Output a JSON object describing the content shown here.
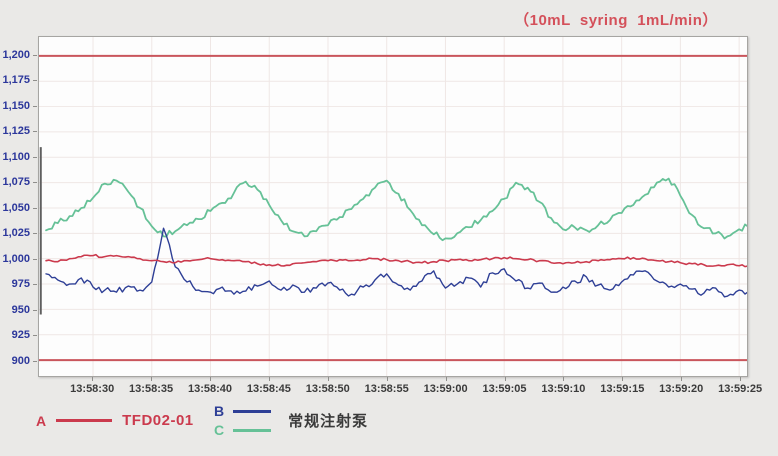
{
  "title": {
    "text": "（10mL  syring  1mL/min）",
    "color": "#d4505a"
  },
  "axes_style": {
    "y_label_color": "#2c379b",
    "x_label_color": "#3b3b3b",
    "tick_color": "#8f8e8b"
  },
  "legend": {
    "item_a": {
      "key": "A",
      "label": "TFD02-01"
    },
    "item_b": {
      "key": "B"
    },
    "item_c": {
      "key": "C"
    },
    "group_label": "常规注射泵"
  },
  "chart_data": {
    "type": "line",
    "title": "（10mL  syring  1mL/min）",
    "xlabel": "",
    "ylabel": "",
    "grid": true,
    "legend_position": "bottom",
    "x_base_time": "13:58:00",
    "x_tick_labels": [
      "13:58:30",
      "13:58:35",
      "13:58:40",
      "13:58:45",
      "13:58:50",
      "13:58:55",
      "13:59:00",
      "13:59:05",
      "13:59:10",
      "13:59:15",
      "13:59:20",
      "13:59:25"
    ],
    "x_ticks_seconds": [
      30,
      35,
      40,
      45,
      50,
      55,
      60,
      65,
      70,
      75,
      80,
      85
    ],
    "y_tick_labels": [
      "1,200",
      "1,175",
      "1,150",
      "1,125",
      "1,100",
      "1,075",
      "1,050",
      "1,025",
      "1,000",
      "975",
      "950",
      "925",
      "900"
    ],
    "y_ticks": [
      1200,
      1175,
      1150,
      1125,
      1100,
      1075,
      1050,
      1025,
      1000,
      975,
      950,
      925,
      900
    ],
    "ylim": [
      884.3,
      1218.6
    ],
    "xlim_seconds": [
      25.4,
      85.67
    ],
    "limit_lines": {
      "upper": 1200,
      "lower": 900,
      "color": "#c9555c",
      "width": 2
    },
    "startup_artifact": {
      "x_second": 25.55,
      "value_top": 1110,
      "value_bottom": 945,
      "color": "#5f5f5f",
      "width": 2
    },
    "style": {
      "plot_background": "#fdfdfd",
      "grid_color": "#efe7e5",
      "noise_seed": 20240601
    },
    "x_start_second": 26,
    "x_step_seconds": 1,
    "series": [
      {
        "id": "A",
        "name": "TFD02-01",
        "color": "#cb3a4d",
        "stroke_width": 1.6,
        "noise": 1.2,
        "values": [
          998,
          997,
          1000,
          1002,
          1003,
          1002,
          1003,
          1002,
          1000,
          998,
          997,
          996,
          998,
          999,
          1000,
          999,
          998,
          997,
          995,
          994,
          993,
          995,
          996,
          997,
          998,
          999,
          998,
          999,
          1000,
          999,
          998,
          997,
          996,
          997,
          998,
          999,
          998,
          999,
          1000,
          1001,
          1000,
          999,
          998,
          996,
          995,
          996,
          997,
          998,
          999,
          1000,
          1001,
          1000,
          998,
          997,
          996,
          995,
          994,
          993,
          994,
          993,
          993
        ]
      },
      {
        "id": "B",
        "name": "常规注射泵",
        "color": "#2e3f96",
        "stroke_width": 1.4,
        "noise": 3.2,
        "values": [
          985,
          979,
          975,
          981,
          972,
          969,
          967,
          973,
          969,
          977,
          1030,
          992,
          977,
          969,
          967,
          972,
          965,
          968,
          973,
          978,
          969,
          974,
          967,
          971,
          976,
          969,
          965,
          972,
          979,
          985,
          974,
          969,
          978,
          988,
          971,
          975,
          981,
          972,
          986,
          990,
          978,
          971,
          976,
          967,
          972,
          978,
          982,
          974,
          969,
          977,
          984,
          988,
          978,
          972,
          975,
          970,
          966,
          971,
          963,
          969,
          967
        ]
      },
      {
        "id": "C",
        "name": "常规注射泵",
        "color": "#66c197",
        "stroke_width": 1.8,
        "noise": 3.0,
        "values": [
          1028,
          1035,
          1042,
          1050,
          1060,
          1074,
          1077,
          1066,
          1050,
          1032,
          1022,
          1027,
          1033,
          1039,
          1047,
          1055,
          1065,
          1076,
          1068,
          1053,
          1038,
          1027,
          1022,
          1027,
          1033,
          1041,
          1049,
          1059,
          1070,
          1077,
          1064,
          1048,
          1033,
          1024,
          1020,
          1025,
          1031,
          1038,
          1047,
          1059,
          1075,
          1070,
          1056,
          1040,
          1029,
          1031,
          1028,
          1033,
          1038,
          1045,
          1053,
          1063,
          1075,
          1079,
          1062,
          1043,
          1030,
          1025,
          1022,
          1029,
          1033
        ]
      }
    ]
  }
}
